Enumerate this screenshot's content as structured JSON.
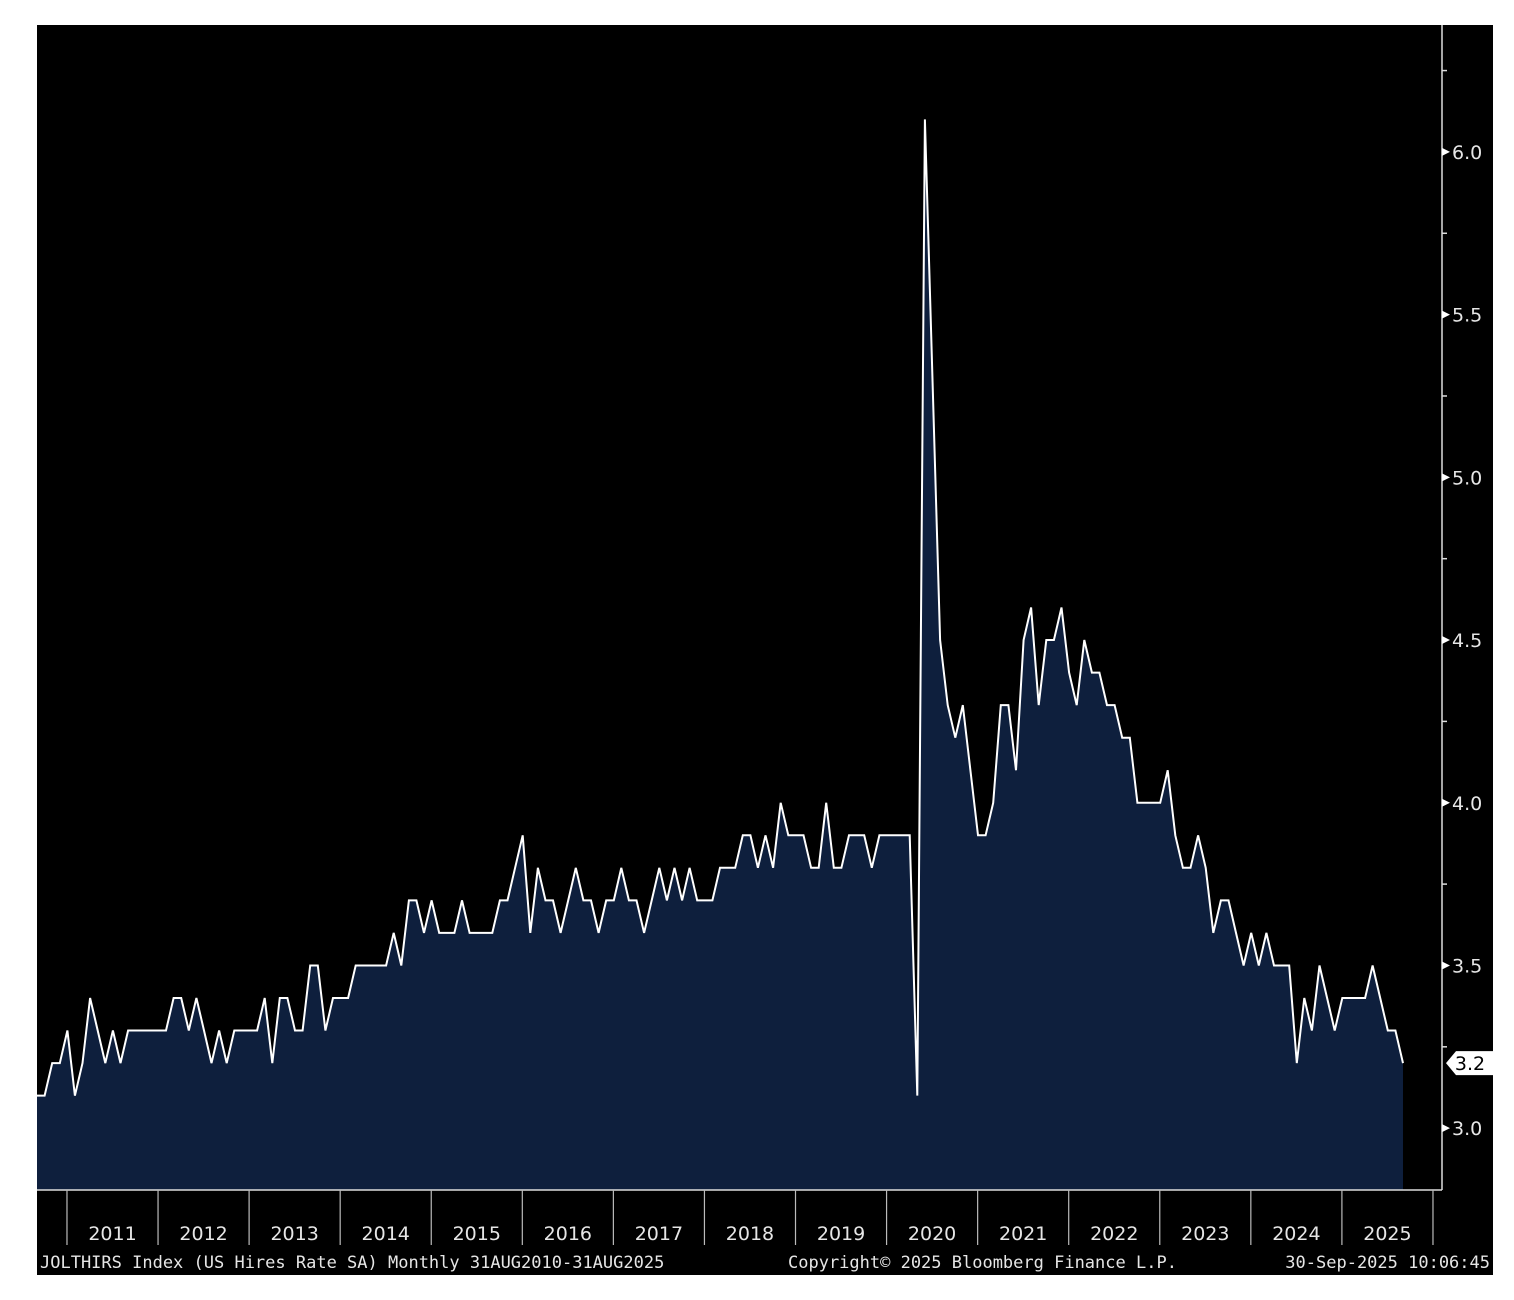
{
  "chart_data": {
    "type": "area",
    "title": "JOLTHIRS Index (US Hires Rate SA)",
    "series_name": "US Hires Rate SA",
    "frequency": "Monthly",
    "x_start": "2010-08",
    "x_end": "2025-08",
    "x_tick_labels": [
      "2011",
      "2012",
      "2013",
      "2014",
      "2015",
      "2016",
      "2017",
      "2018",
      "2019",
      "2020",
      "2021",
      "2022",
      "2023",
      "2024",
      "2025"
    ],
    "y_tick_labels": [
      "3.0",
      "3.5",
      "4.0",
      "4.5",
      "5.0",
      "5.5",
      "6.0"
    ],
    "y_ticks": [
      3.0,
      3.5,
      4.0,
      4.5,
      5.0,
      5.5,
      6.0
    ],
    "ylim": [
      2.81,
      6.39
    ],
    "last_value_label": "3.2",
    "values": [
      3.1,
      3.1,
      3.2,
      3.2,
      3.3,
      3.1,
      3.2,
      3.4,
      3.3,
      3.2,
      3.3,
      3.2,
      3.3,
      3.3,
      3.3,
      3.3,
      3.3,
      3.3,
      3.4,
      3.4,
      3.3,
      3.4,
      3.3,
      3.2,
      3.3,
      3.2,
      3.3,
      3.3,
      3.3,
      3.3,
      3.4,
      3.2,
      3.4,
      3.4,
      3.3,
      3.3,
      3.5,
      3.5,
      3.3,
      3.4,
      3.4,
      3.4,
      3.5,
      3.5,
      3.5,
      3.5,
      3.5,
      3.6,
      3.5,
      3.7,
      3.7,
      3.6,
      3.7,
      3.6,
      3.6,
      3.6,
      3.7,
      3.6,
      3.6,
      3.6,
      3.6,
      3.7,
      3.7,
      3.8,
      3.9,
      3.6,
      3.8,
      3.7,
      3.7,
      3.6,
      3.7,
      3.8,
      3.7,
      3.7,
      3.6,
      3.7,
      3.7,
      3.8,
      3.7,
      3.7,
      3.6,
      3.7,
      3.8,
      3.7,
      3.8,
      3.7,
      3.8,
      3.7,
      3.7,
      3.7,
      3.8,
      3.8,
      3.8,
      3.9,
      3.9,
      3.8,
      3.9,
      3.8,
      4.0,
      3.9,
      3.9,
      3.9,
      3.8,
      3.8,
      4.0,
      3.8,
      3.8,
      3.9,
      3.9,
      3.9,
      3.8,
      3.9,
      3.9,
      3.9,
      3.9,
      3.9,
      3.1,
      6.1,
      5.3,
      4.5,
      4.3,
      4.2,
      4.3,
      4.1,
      3.9,
      3.9,
      4.0,
      4.3,
      4.3,
      4.1,
      4.5,
      4.6,
      4.3,
      4.5,
      4.5,
      4.6,
      4.4,
      4.3,
      4.5,
      4.4,
      4.4,
      4.3,
      4.3,
      4.2,
      4.2,
      4.0,
      4.0,
      4.0,
      4.0,
      4.1,
      3.9,
      3.8,
      3.8,
      3.9,
      3.8,
      3.6,
      3.7,
      3.7,
      3.6,
      3.5,
      3.6,
      3.5,
      3.6,
      3.5,
      3.5,
      3.5,
      3.2,
      3.4,
      3.3,
      3.5,
      3.4,
      3.3,
      3.4,
      3.4,
      3.4,
      3.4,
      3.5,
      3.4,
      3.3,
      3.3,
      3.2
    ],
    "colors": {
      "background": "#000000",
      "fill": "#0e1f3d",
      "line": "#ffffff",
      "text": "#e6e6e6"
    }
  },
  "footer": {
    "description": "JOLTHIRS Index (US Hires Rate SA) Monthly 31AUG2010-31AUG2025",
    "copyright": "Copyright© 2025 Bloomberg Finance L.P.",
    "timestamp": "30-Sep-2025 10:06:45"
  }
}
